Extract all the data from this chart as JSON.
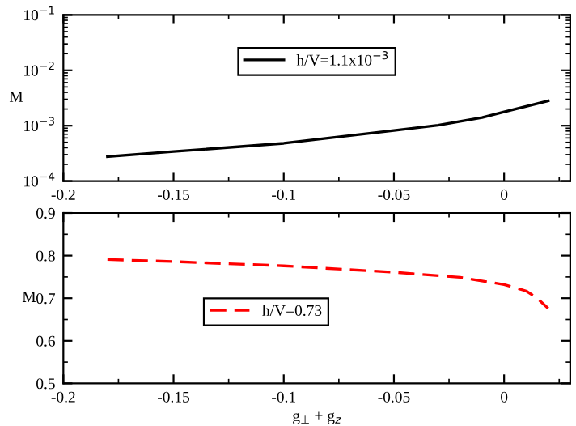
{
  "chart_data": [
    {
      "type": "line",
      "ylabel": "M",
      "log": "y",
      "xlim": [
        -0.2,
        0.03
      ],
      "xticks": [
        -0.2,
        -0.15,
        -0.1,
        -0.05,
        0
      ],
      "ylim": [
        0.0001,
        0.1
      ],
      "yticks": [
        {
          "value": 0.0001,
          "label": "10$^{−4}$"
        },
        {
          "value": 0.001,
          "label": "10$^{−3}$"
        },
        {
          "value": 0.01,
          "label": "10$^{−2}$"
        },
        {
          "value": 0.1,
          "label": "10$^{−1}$"
        }
      ],
      "legend": "top",
      "grid": false,
      "line_style": "solid",
      "marker": "none",
      "series": [
        {
          "name": "h/V=1.1x10$^{−3}$",
          "color": "#000000",
          "x": [
            -0.18,
            -0.15,
            -0.1,
            -0.05,
            -0.03,
            -0.01,
            0,
            0.02
          ],
          "values": [
            0.000275,
            0.00034,
            0.00048,
            0.00082,
            0.00102,
            0.0014,
            0.00178,
            0.0028
          ]
        }
      ]
    },
    {
      "type": "line",
      "xlabel": "g$_{⊥}$ + g$_{z}$",
      "ylabel": "M",
      "xlim": [
        -0.2,
        0.03
      ],
      "xticks": [
        -0.2,
        -0.15,
        -0.1,
        -0.05,
        0
      ],
      "ylim": [
        0.5,
        0.9
      ],
      "yticks": [
        0.5,
        0.6,
        0.7,
        0.8,
        0.9
      ],
      "legend": "center",
      "grid": false,
      "line_style": "dashed",
      "marker": "none",
      "series": [
        {
          "name": "h/V=0.73",
          "color": "#ff0000",
          "x": [
            -0.18,
            -0.15,
            -0.1,
            -0.05,
            -0.02,
            0,
            0.01,
            0.015,
            0.02
          ],
          "values": [
            0.791,
            0.786,
            0.776,
            0.761,
            0.749,
            0.732,
            0.717,
            0.7,
            0.676
          ]
        }
      ]
    }
  ]
}
